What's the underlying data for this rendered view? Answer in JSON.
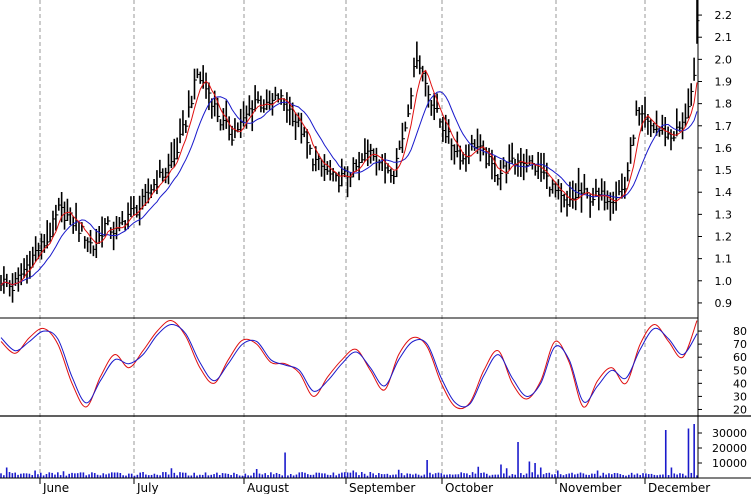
{
  "chart_data": [
    {
      "type": "ohlc",
      "panel": "price",
      "y_ticks": [
        "2.2",
        "2.1",
        "2.0",
        "1.9",
        "1.8",
        "1.7",
        "1.6",
        "1.5",
        "1.4",
        "1.3",
        "1.2",
        "1.1",
        "1.0",
        "0.9"
      ],
      "ylim": [
        0.85,
        2.25
      ],
      "x_months": [
        "June",
        "July",
        "August",
        "September",
        "October",
        "November",
        "December"
      ],
      "series": [
        {
          "role": "price-bars",
          "color": "#000000"
        },
        {
          "role": "moving-average-fast",
          "color": "#e01010"
        },
        {
          "role": "moving-average-slow",
          "color": "#1a1acc"
        }
      ],
      "anchors": [
        [
          0,
          1.0
        ],
        [
          4,
          0.97
        ],
        [
          8,
          1.05
        ],
        [
          12,
          1.13
        ],
        [
          16,
          1.18
        ],
        [
          20,
          1.32
        ],
        [
          24,
          1.28
        ],
        [
          28,
          1.22
        ],
        [
          32,
          1.15
        ],
        [
          36,
          1.25
        ],
        [
          40,
          1.22
        ],
        [
          44,
          1.3
        ],
        [
          48,
          1.33
        ],
        [
          52,
          1.42
        ],
        [
          56,
          1.48
        ],
        [
          60,
          1.55
        ],
        [
          64,
          1.72
        ],
        [
          68,
          1.93
        ],
        [
          72,
          1.85
        ],
        [
          76,
          1.72
        ],
        [
          80,
          1.66
        ],
        [
          84,
          1.72
        ],
        [
          88,
          1.82
        ],
        [
          92,
          1.78
        ],
        [
          96,
          1.83
        ],
        [
          100,
          1.77
        ],
        [
          104,
          1.68
        ],
        [
          108,
          1.55
        ],
        [
          112,
          1.5
        ],
        [
          116,
          1.45
        ],
        [
          120,
          1.48
        ],
        [
          124,
          1.52
        ],
        [
          128,
          1.6
        ],
        [
          132,
          1.52
        ],
        [
          136,
          1.5
        ],
        [
          140,
          1.7
        ],
        [
          144,
          2.02
        ],
        [
          148,
          1.85
        ],
        [
          152,
          1.72
        ],
        [
          156,
          1.62
        ],
        [
          160,
          1.55
        ],
        [
          164,
          1.62
        ],
        [
          168,
          1.55
        ],
        [
          172,
          1.48
        ],
        [
          176,
          1.52
        ],
        [
          180,
          1.55
        ],
        [
          184,
          1.52
        ],
        [
          188,
          1.48
        ],
        [
          192,
          1.4
        ],
        [
          196,
          1.33
        ],
        [
          200,
          1.4
        ],
        [
          204,
          1.38
        ],
        [
          208,
          1.38
        ],
        [
          212,
          1.38
        ],
        [
          216,
          1.42
        ],
        [
          220,
          1.75
        ],
        [
          224,
          1.7
        ],
        [
          228,
          1.68
        ],
        [
          232,
          1.65
        ],
        [
          236,
          1.7
        ],
        [
          240,
          1.9
        ],
        [
          241,
          2.15
        ]
      ],
      "n_bars": 242
    },
    {
      "type": "line",
      "panel": "oscillator",
      "y_ticks": [
        "80",
        "70",
        "60",
        "50",
        "40",
        "30",
        "20"
      ],
      "ylim": [
        15,
        90
      ],
      "series": [
        {
          "color": "#e01010",
          "values": [
            72,
            63,
            75,
            82,
            70,
            40,
            22,
            45,
            62,
            52,
            65,
            80,
            88,
            76,
            52,
            40,
            58,
            73,
            70,
            56,
            55,
            48,
            30,
            45,
            58,
            66,
            50,
            35,
            62,
            75,
            68,
            40,
            22,
            25,
            50,
            65,
            40,
            28,
            42,
            72,
            56,
            22,
            42,
            52,
            40,
            70,
            85,
            72,
            60,
            88
          ]
        },
        {
          "color": "#1a1acc",
          "values": [
            75,
            65,
            72,
            80,
            74,
            45,
            25,
            42,
            58,
            55,
            62,
            77,
            85,
            78,
            56,
            42,
            55,
            70,
            72,
            58,
            54,
            50,
            34,
            42,
            55,
            64,
            52,
            38,
            58,
            72,
            70,
            44,
            25,
            24,
            46,
            62,
            44,
            30,
            40,
            68,
            58,
            26,
            38,
            50,
            44,
            66,
            82,
            74,
            62,
            78
          ]
        }
      ]
    },
    {
      "type": "bar",
      "panel": "volume",
      "y_ticks": [
        "30000",
        "20000",
        "10000"
      ],
      "ylim": [
        0,
        40000
      ],
      "color": "#1a1acc",
      "spikes": [
        [
          2,
          7000
        ],
        [
          12,
          5000
        ],
        [
          22,
          4500
        ],
        [
          38,
          3000
        ],
        [
          50,
          4000
        ],
        [
          60,
          6500
        ],
        [
          68,
          3500
        ],
        [
          90,
          6000
        ],
        [
          100,
          17000
        ],
        [
          112,
          3500
        ],
        [
          124,
          5000
        ],
        [
          130,
          4000
        ],
        [
          140,
          5500
        ],
        [
          150,
          12000
        ],
        [
          168,
          7500
        ],
        [
          176,
          9000
        ],
        [
          178,
          6500
        ],
        [
          182,
          24000
        ],
        [
          186,
          11000
        ],
        [
          188,
          10000
        ],
        [
          190,
          7000
        ],
        [
          196,
          5000
        ],
        [
          200,
          3000
        ],
        [
          210,
          5000
        ],
        [
          224,
          3000
        ],
        [
          234,
          32000
        ],
        [
          236,
          7000
        ],
        [
          242,
          33000
        ],
        [
          244,
          36000
        ]
      ]
    }
  ]
}
